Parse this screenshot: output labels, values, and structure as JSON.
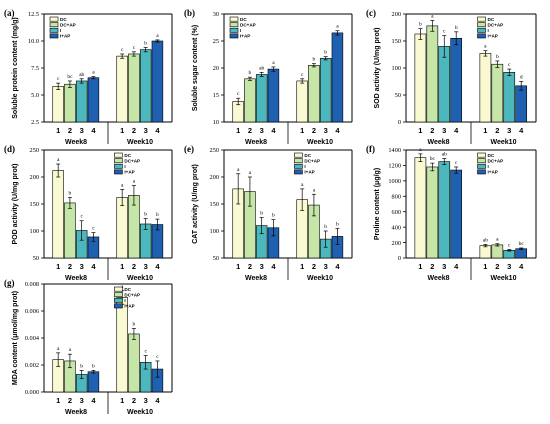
{
  "colors": {
    "DC": "#fafad2",
    "DC+AP": "#c6e6a8",
    "I": "#4cb8be",
    "I+AP": "#2060b0"
  },
  "chart_data": [
    {
      "type": "bar",
      "panel": "(a)",
      "ylabel": "Soluble protein content (mg/g)",
      "ylim": [
        2.5,
        12.5
      ],
      "yticks": [
        "2.5",
        "5.0",
        "7.5",
        "10.0",
        "12.5"
      ],
      "ytick_values": [
        2.5,
        5,
        7.5,
        10,
        12.5
      ],
      "legend_position": "top-left",
      "legend": [
        "DC",
        "DC+AP",
        "I",
        "I+AP"
      ],
      "categories": [
        "1",
        "2",
        "3",
        "4"
      ],
      "groups": [
        {
          "label": "Week8",
          "values": [
            5.8,
            6.0,
            6.3,
            6.6
          ],
          "errors": [
            0.3,
            0.3,
            0.2,
            0.1
          ],
          "sig": [
            "c",
            "bc",
            "ab",
            "a"
          ]
        },
        {
          "label": "Week10",
          "values": [
            8.6,
            8.8,
            9.2,
            10.0
          ],
          "errors": [
            0.2,
            0.2,
            0.2,
            0.1
          ],
          "sig": [
            "c",
            "c",
            "b",
            "a"
          ]
        }
      ]
    },
    {
      "type": "bar",
      "panel": "(b)",
      "ylabel": "Soluble sugar content (%)",
      "ylim": [
        10,
        30
      ],
      "yticks": [
        "10",
        "15",
        "20",
        "25",
        "30"
      ],
      "ytick_values": [
        10,
        15,
        20,
        25,
        30
      ],
      "legend_position": "top-left",
      "legend": [
        "DC",
        "DC+AP",
        "I",
        "I+AP"
      ],
      "categories": [
        "1",
        "2",
        "3",
        "4"
      ],
      "groups": [
        {
          "label": "Week8",
          "values": [
            13.8,
            18.0,
            18.8,
            19.8
          ],
          "errors": [
            0.6,
            0.3,
            0.4,
            0.4
          ],
          "sig": [
            "c",
            "b",
            "ab",
            "a"
          ]
        },
        {
          "label": "Week10",
          "values": [
            17.6,
            20.5,
            21.8,
            26.5
          ],
          "errors": [
            0.4,
            0.3,
            0.3,
            0.4
          ],
          "sig": [
            "c",
            "b",
            "b",
            "a"
          ]
        }
      ]
    },
    {
      "type": "bar",
      "panel": "(c)",
      "ylabel": "SOD activity (U/mg prot)",
      "ylim": [
        0,
        200
      ],
      "yticks": [
        "0",
        "50",
        "100",
        "150",
        "200"
      ],
      "ytick_values": [
        0,
        50,
        100,
        150,
        200
      ],
      "legend_position": "top-right",
      "legend": [
        "DC",
        "DC+AP",
        "I",
        "I+AP"
      ],
      "categories": [
        "1",
        "2",
        "3",
        "4"
      ],
      "groups": [
        {
          "label": "Week8",
          "values": [
            163,
            178,
            140,
            155
          ],
          "errors": [
            10,
            10,
            20,
            12
          ],
          "sig": [
            "b",
            "a",
            "c",
            "b"
          ]
        },
        {
          "label": "Week10",
          "values": [
            127,
            107,
            92,
            67
          ],
          "errors": [
            5,
            6,
            6,
            8
          ],
          "sig": [
            "a",
            "b",
            "c",
            "d"
          ]
        }
      ]
    },
    {
      "type": "bar",
      "panel": "(d)",
      "ylabel": "POD activity (U/mg prot)",
      "ylim": [
        50,
        250
      ],
      "yticks": [
        "50",
        "100",
        "150",
        "200",
        "250"
      ],
      "ytick_values": [
        50,
        100,
        150,
        200,
        250
      ],
      "legend_position": "top-right",
      "legend": [
        "DC",
        "DC+AP",
        "I",
        "I+AP"
      ],
      "categories": [
        "1",
        "2",
        "3",
        "4"
      ],
      "groups": [
        {
          "label": "Week8",
          "values": [
            212,
            152,
            101,
            89
          ],
          "errors": [
            12,
            10,
            18,
            8
          ],
          "sig": [
            "a",
            "b",
            "c",
            "c"
          ]
        },
        {
          "label": "Week10",
          "values": [
            162,
            166,
            113,
            112
          ],
          "errors": [
            15,
            18,
            10,
            10
          ],
          "sig": [
            "a",
            "a",
            "b",
            "b"
          ]
        }
      ]
    },
    {
      "type": "bar",
      "panel": "(e)",
      "ylabel": "CAT activity (U/mg prot)",
      "ylim": [
        50,
        250
      ],
      "yticks": [
        "50",
        "100",
        "150",
        "200",
        "250"
      ],
      "ytick_values": [
        50,
        100,
        150,
        200,
        250
      ],
      "legend_position": "top-right",
      "legend": [
        "DC",
        "DC+AP",
        "I",
        "I+AP"
      ],
      "categories": [
        "1",
        "2",
        "3",
        "4"
      ],
      "groups": [
        {
          "label": "Week8",
          "values": [
            178,
            173,
            110,
            106
          ],
          "errors": [
            28,
            27,
            15,
            15
          ],
          "sig": [
            "a",
            "a",
            "b",
            "b"
          ]
        },
        {
          "label": "Week10",
          "values": [
            158,
            148,
            85,
            90
          ],
          "errors": [
            20,
            20,
            15,
            15
          ],
          "sig": [
            "a",
            "a",
            "b",
            "b"
          ]
        }
      ]
    },
    {
      "type": "bar",
      "panel": "(f)",
      "ylabel": "Proline content (μg/g)",
      "ylim": [
        0,
        1400
      ],
      "yticks": [
        "0",
        "200",
        "400",
        "600",
        "800",
        "1000",
        "1200",
        "1400"
      ],
      "ytick_values": [
        0,
        200,
        400,
        600,
        800,
        1000,
        1200,
        1400
      ],
      "legend_position": "top-right",
      "legend": [
        "DC",
        "DC+AP",
        "I",
        "I+AP"
      ],
      "categories": [
        "1",
        "2",
        "3",
        "4"
      ],
      "groups": [
        {
          "label": "Week8",
          "values": [
            1300,
            1180,
            1250,
            1140
          ],
          "errors": [
            50,
            50,
            40,
            40
          ],
          "sig": [
            "a",
            "bc",
            "ab",
            "c"
          ]
        },
        {
          "label": "Week10",
          "values": [
            160,
            170,
            100,
            120
          ],
          "errors": [
            15,
            15,
            10,
            10
          ],
          "sig": [
            "ab",
            "a",
            "c",
            "bc"
          ]
        }
      ]
    },
    {
      "type": "bar",
      "panel": "(g)",
      "ylabel": "MDA content (μmol/mg prot)",
      "ylim": [
        0,
        0.008
      ],
      "yticks": [
        "0.000",
        "0.002",
        "0.004",
        "0.006",
        "0.008"
      ],
      "ytick_values": [
        0,
        0.002,
        0.004,
        0.006,
        0.008
      ],
      "legend_position": "top-right",
      "legend": [
        "DC",
        "DC+AP",
        "I",
        "I+AP"
      ],
      "categories": [
        "1",
        "2",
        "3",
        "4"
      ],
      "groups": [
        {
          "label": "Week8",
          "values": [
            0.0024,
            0.0023,
            0.0013,
            0.0015
          ],
          "errors": [
            0.0005,
            0.0005,
            0.0003,
            0.0001
          ],
          "sig": [
            "a",
            "a",
            "b",
            "b"
          ]
        },
        {
          "label": "Week10",
          "values": [
            0.007,
            0.0043,
            0.0022,
            0.0017
          ],
          "errors": [
            0.0005,
            0.0004,
            0.0005,
            0.0006
          ],
          "sig": [
            "a",
            "b",
            "c",
            "c"
          ]
        }
      ]
    }
  ]
}
